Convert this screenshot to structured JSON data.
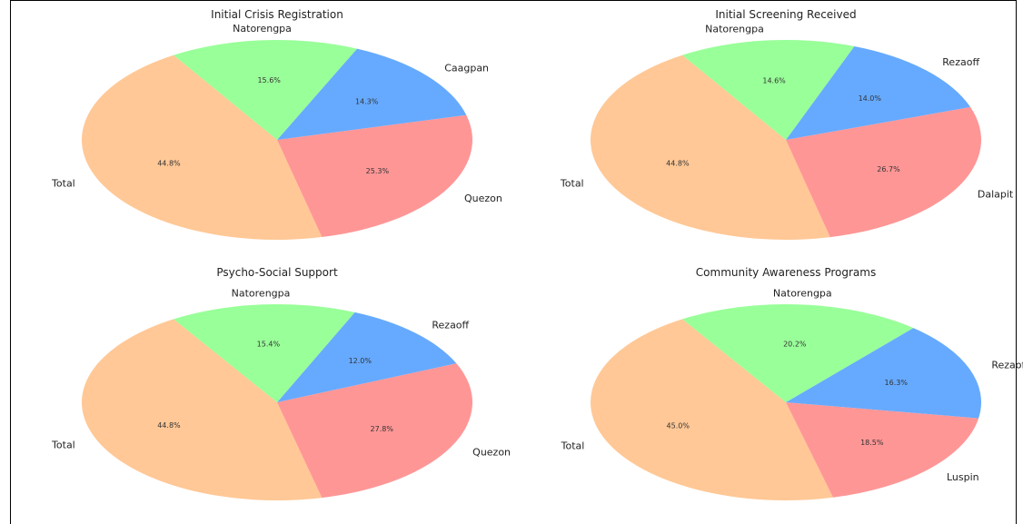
{
  "chart_data": [
    {
      "type": "pie",
      "title": "Initial Crisis Registration",
      "categories": [
        "Total",
        "Quezon",
        "Caagpan",
        "Natorengpa"
      ],
      "values": [
        44.8,
        25.3,
        14.3,
        15.6
      ],
      "labels": [
        "44.8%",
        "25.3%",
        "14.3%",
        "15.6%"
      ],
      "colors": [
        "#ffc896",
        "#ff9696",
        "#66aaff",
        "#99ff99"
      ]
    },
    {
      "type": "pie",
      "title": "Initial Screening Received",
      "categories": [
        "Total",
        "Dalapit",
        "Rezaoff",
        "Natorengpa"
      ],
      "values": [
        44.8,
        26.7,
        14.0,
        14.6
      ],
      "labels": [
        "44.8%",
        "26.7%",
        "14.0%",
        "14.6%"
      ],
      "colors": [
        "#ffc896",
        "#ff9696",
        "#66aaff",
        "#99ff99"
      ]
    },
    {
      "type": "pie",
      "title": "Psycho-Social Support",
      "categories": [
        "Total",
        "Quezon",
        "Rezaoff",
        "Natorengpa"
      ],
      "values": [
        44.8,
        27.8,
        12.0,
        15.4
      ],
      "labels": [
        "44.8%",
        "27.8%",
        "12.0%",
        "15.4%"
      ],
      "colors": [
        "#ffc896",
        "#ff9696",
        "#66aaff",
        "#99ff99"
      ]
    },
    {
      "type": "pie",
      "title": "Community Awareness Programs",
      "categories": [
        "Total",
        "Luspin",
        "Rezaoff",
        "Natorengpa"
      ],
      "values": [
        45.0,
        18.5,
        16.3,
        20.2
      ],
      "labels": [
        "45.0%",
        "18.5%",
        "16.3%",
        "20.2%"
      ],
      "colors": [
        "#ffc896",
        "#ff9696",
        "#66aaff",
        "#99ff99"
      ]
    }
  ]
}
